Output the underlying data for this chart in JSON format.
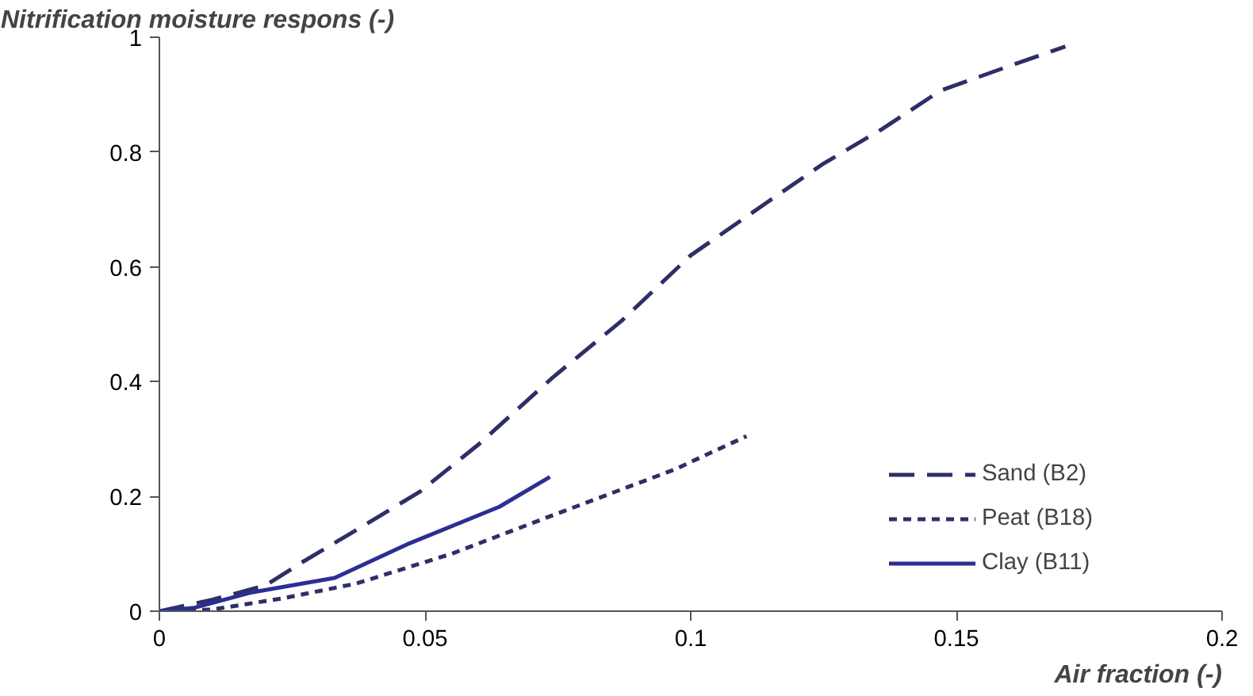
{
  "chart_data": {
    "type": "line",
    "ylabel": "Nitrification moisture respons (-)",
    "xlabel": "Air fraction (-)",
    "xlim": [
      0,
      0.2
    ],
    "xticks": [
      0,
      0.05,
      0.1,
      0.15,
      0.2
    ],
    "ylim": [
      0,
      1
    ],
    "yticks": [
      0,
      0.2,
      0.4,
      0.6,
      0.8,
      1
    ],
    "grid": false,
    "legend": "right",
    "marker": "none",
    "series": [
      {
        "name": "Sand (B2)",
        "color": "#2e2f66",
        "line_style": "dashed",
        "x": [
          0,
          0.01,
          0.02,
          0.027,
          0.035,
          0.049,
          0.06,
          0.074,
          0.087,
          0.1,
          0.114,
          0.125,
          0.136,
          0.147,
          0.16,
          0.1705
        ],
        "values": [
          0,
          0.02,
          0.045,
          0.086,
          0.13,
          0.208,
          0.29,
          0.407,
          0.506,
          0.62,
          0.71,
          0.78,
          0.84,
          0.907,
          0.95,
          0.984
        ]
      },
      {
        "name": "Peat (B18)",
        "color": "#2e2f66",
        "line_style": "dotted",
        "x": [
          0,
          0.01,
          0.023,
          0.037,
          0.055,
          0.074,
          0.097,
          0.1105
        ],
        "values": [
          0,
          0.003,
          0.022,
          0.048,
          0.1,
          0.167,
          0.247,
          0.305
        ]
      },
      {
        "name": "Clay (B11)",
        "color": "#2b2f93",
        "line_style": "solid",
        "x": [
          0,
          0.0066,
          0.017,
          0.033,
          0.047,
          0.064,
          0.0735
        ],
        "values": [
          0,
          0.006,
          0.032,
          0.058,
          0.118,
          0.182,
          0.234
        ]
      }
    ]
  }
}
